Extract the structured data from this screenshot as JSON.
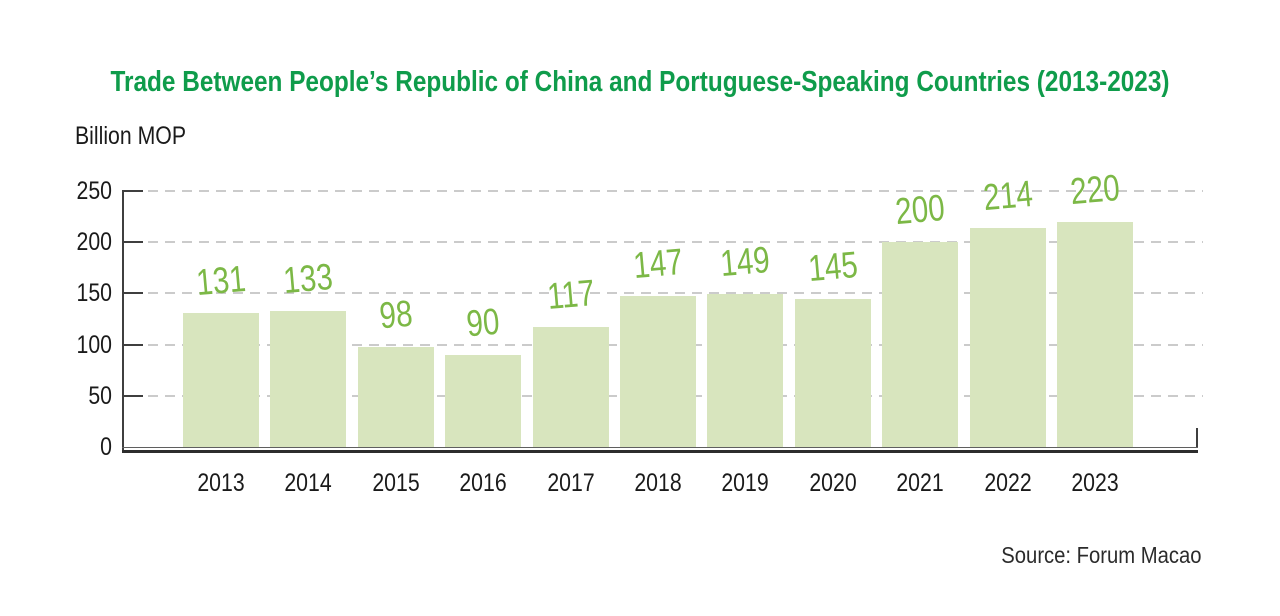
{
  "title": "Trade Between People’s Republic of China and Portuguese-Speaking Countries (2013-2023)",
  "unit_label": "Billion MOP",
  "source": "Source: Forum Macao",
  "colors": {
    "title_green": "#0F9C4B",
    "value_label_green": "#7CB846",
    "bar_fill": "#D8E5BE",
    "gridline_gray": "#CBCBCB",
    "axis_dark": "#3F3F3F",
    "axis_thick_dark": "#2D2D2D",
    "tick_label_dark": "#1A1A1A"
  },
  "chart_data": {
    "type": "bar",
    "title": "Trade Between People’s Republic of China and Portuguese-Speaking Countries (2013-2023)",
    "categories": [
      "2013",
      "2014",
      "2015",
      "2016",
      "2017",
      "2018",
      "2019",
      "2020",
      "2021",
      "2022",
      "2023"
    ],
    "values": [
      131,
      133,
      98,
      90,
      117,
      147,
      149,
      145,
      200,
      214,
      220
    ],
    "xlabel": "",
    "ylabel": "Billion MOP",
    "ylim": [
      0,
      250
    ],
    "yticks": [
      0,
      50,
      100,
      150,
      200,
      250
    ],
    "grid": "horizontal-dashed",
    "legend": "none",
    "data_labels": "above-bars",
    "source": "Source: Forum Macao"
  }
}
